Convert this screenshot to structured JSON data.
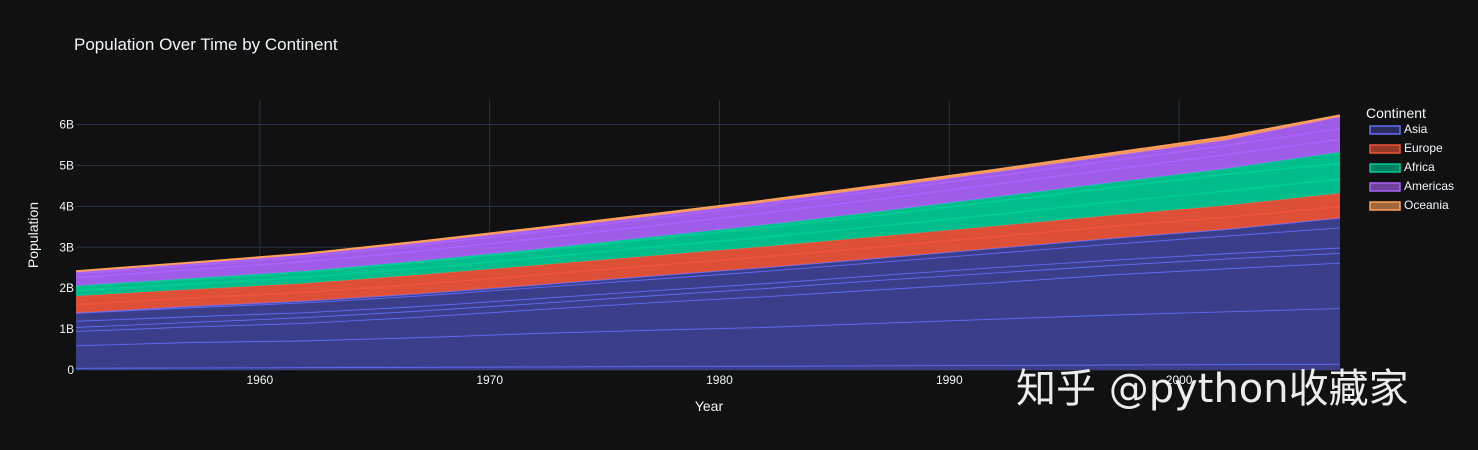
{
  "chart_data": {
    "type": "area",
    "title": "Population Over Time by Continent",
    "xlabel": "Year",
    "ylabel": "Population",
    "xlim": [
      1952,
      2007
    ],
    "ylim": [
      0,
      6600000000
    ],
    "x_ticks": [
      1960,
      1970,
      1980,
      1990,
      2000
    ],
    "y_ticks": [
      {
        "value": 0,
        "label": "0"
      },
      {
        "value": 1000000000,
        "label": "1B"
      },
      {
        "value": 2000000000,
        "label": "2B"
      },
      {
        "value": 3000000000,
        "label": "3B"
      },
      {
        "value": 4000000000,
        "label": "4B"
      },
      {
        "value": 5000000000,
        "label": "5B"
      },
      {
        "value": 6000000000,
        "label": "6B"
      }
    ],
    "grid": true,
    "stacked": true,
    "legend_title": "Continent",
    "legend_position": "right",
    "x": [
      1952,
      1957,
      1962,
      1967,
      1972,
      1977,
      1982,
      1987,
      1992,
      1997,
      2002,
      2007
    ],
    "series": [
      {
        "name": "Asia",
        "color": "#636efa",
        "fill": "#3d4190",
        "boundaries": [
          [
            50000000,
            58000000,
            66000000,
            75000000,
            84000000,
            92000000,
            100000000,
            110000000,
            120000000,
            130000000,
            140000000,
            150000000
          ],
          [
            600000000,
            680000000,
            720000000,
            800000000,
            900000000,
            980000000,
            1050000000,
            1150000000,
            1250000000,
            1350000000,
            1430000000,
            1510000000
          ],
          [
            950000000,
            1060000000,
            1150000000,
            1300000000,
            1480000000,
            1650000000,
            1800000000,
            1970000000,
            2140000000,
            2330000000,
            2480000000,
            2620000000
          ],
          [
            1050000000,
            1170000000,
            1290000000,
            1450000000,
            1630000000,
            1820000000,
            2000000000,
            2200000000,
            2380000000,
            2560000000,
            2720000000,
            2860000000
          ],
          [
            1200000000,
            1310000000,
            1410000000,
            1560000000,
            1750000000,
            1940000000,
            2120000000,
            2320000000,
            2510000000,
            2690000000,
            2850000000,
            2990000000
          ],
          [
            1395000000,
            1530000000,
            1650000000,
            1820000000,
            2020000000,
            2220000000,
            2420000000,
            2640000000,
            2860000000,
            3080000000,
            3280000000,
            3480000000
          ],
          [
            1395000000,
            1560000000,
            1690000000,
            1870000000,
            2080000000,
            2300000000,
            2510000000,
            2740000000,
            2980000000,
            3220000000,
            3440000000,
            3720000000
          ]
        ]
      },
      {
        "name": "Europe",
        "color": "#ef553b",
        "fill": "#ef553b",
        "boundaries": [
          [
            1600000000,
            1760000000,
            1900000000,
            2100000000,
            2320000000,
            2550000000,
            2770000000,
            3010000000,
            3260000000,
            3510000000,
            3730000000,
            3990000000
          ],
          [
            1810000000,
            1970000000,
            2120000000,
            2330000000,
            2560000000,
            2790000000,
            3020000000,
            3270000000,
            3520000000,
            3780000000,
            4020000000,
            4320000000
          ]
        ]
      },
      {
        "name": "Africa",
        "color": "#00cc96",
        "fill": "#00cc96",
        "boundaries": [
          [
            1950000000,
            2100000000,
            2270000000,
            2490000000,
            2740000000,
            3000000000,
            3250000000,
            3520000000,
            3800000000,
            4100000000,
            4370000000,
            4670000000
          ],
          [
            2050000000,
            2220000000,
            2400000000,
            2640000000,
            2910000000,
            3200000000,
            3480000000,
            3790000000,
            4120000000,
            4450000000,
            4780000000,
            5050000000
          ],
          [
            2060000000,
            2240000000,
            2420000000,
            2670000000,
            2950000000,
            3250000000,
            3550000000,
            3880000000,
            4230000000,
            4580000000,
            4920000000,
            5330000000
          ]
        ]
      },
      {
        "name": "Americas",
        "color": "#ab63fa",
        "fill": "#ab63fa",
        "boundaries": [
          [
            2260000000,
            2450000000,
            2650000000,
            2910000000,
            3210000000,
            3520000000,
            3840000000,
            4180000000,
            4540000000,
            4900000000,
            5260000000,
            5640000000
          ],
          [
            2350000000,
            2560000000,
            2770000000,
            3060000000,
            3370000000,
            3700000000,
            4030000000,
            4380000000,
            4740000000,
            5110000000,
            5480000000,
            5900000000
          ],
          [
            2390000000,
            2600000000,
            2820000000,
            3110000000,
            3430000000,
            3760000000,
            4100000000,
            4460000000,
            4840000000,
            5230000000,
            5620000000,
            6190000000
          ]
        ]
      },
      {
        "name": "Oceania",
        "color": "#ffa15a",
        "fill": "#ffa15a",
        "boundaries": [
          [
            2420000000,
            2630000000,
            2850000000,
            3150000000,
            3470000000,
            3810000000,
            4150000000,
            4520000000,
            4900000000,
            5300000000,
            5700000000,
            6230000000
          ]
        ]
      }
    ]
  },
  "watermark": "知乎 @python收藏家"
}
